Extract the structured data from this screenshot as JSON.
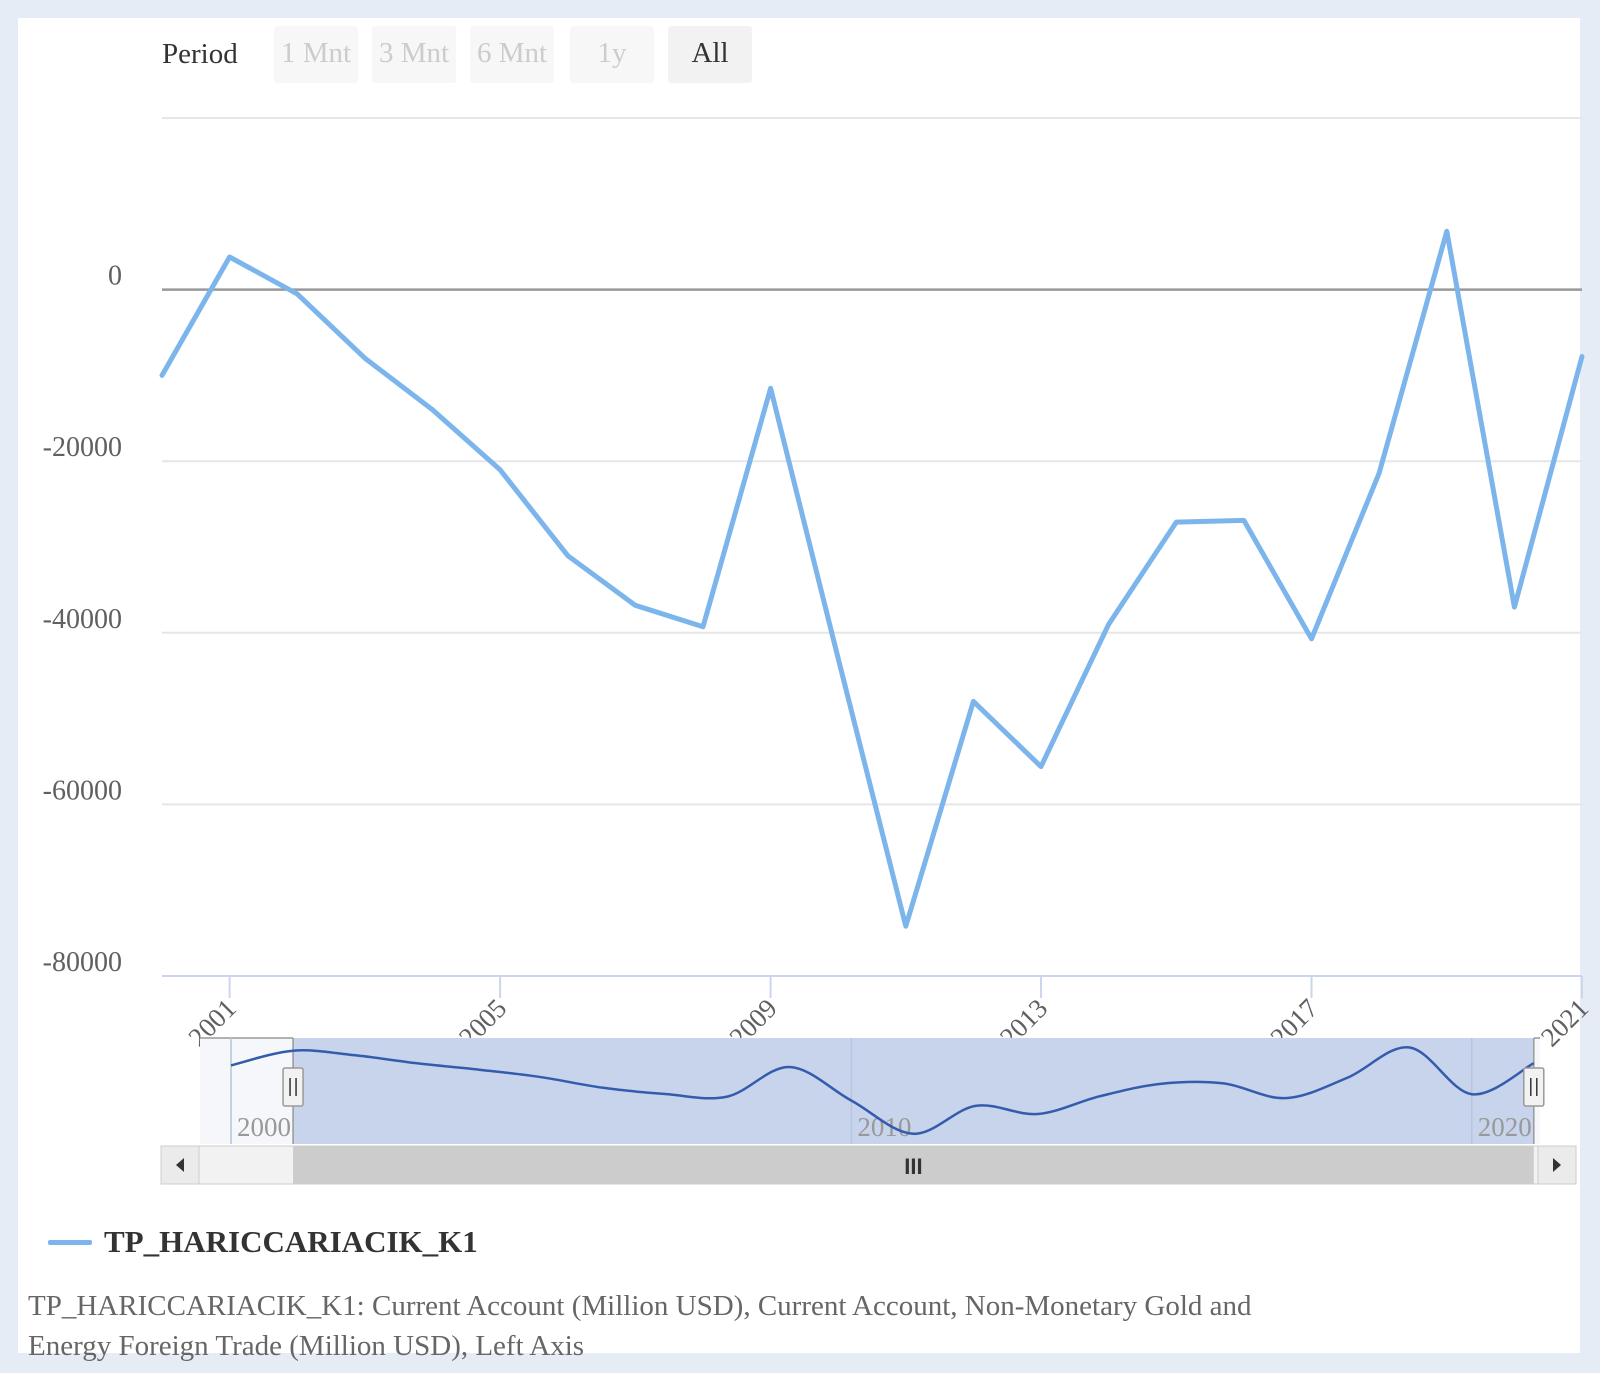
{
  "toolbar": {
    "period_label": "Period",
    "buttons": [
      {
        "label": "1 Mnt",
        "active": false
      },
      {
        "label": "3 Mnt",
        "active": false
      },
      {
        "label": "6 Mnt",
        "active": false
      },
      {
        "label": "1y",
        "active": false
      },
      {
        "label": "All",
        "active": true
      }
    ]
  },
  "chart_data": {
    "type": "line",
    "title": "",
    "xlabel": "",
    "ylabel": "",
    "x": [
      2000,
      2001,
      2002,
      2003,
      2004,
      2005,
      2006,
      2007,
      2008,
      2009,
      2010,
      2011,
      2012,
      2013,
      2014,
      2015,
      2016,
      2017,
      2018,
      2019,
      2020,
      2021
    ],
    "series": [
      {
        "name": "TP_HARICCARIACIK_K1",
        "color": "#7cb5ec",
        "values": [
          -10000,
          3800,
          -500,
          -8000,
          -14000,
          -21000,
          -31000,
          -36800,
          -39300,
          -11500,
          -43000,
          -74200,
          -48000,
          -55600,
          -39000,
          -27100,
          -26900,
          -40700,
          -21400,
          6800,
          -37000,
          -7800
        ]
      }
    ],
    "yticks": [
      0,
      -20000,
      -40000,
      -60000,
      -80000
    ],
    "xticks": [
      2001,
      2005,
      2009,
      2013,
      2017,
      2021
    ],
    "ylim": [
      -80000,
      20000
    ],
    "xlim": [
      2000,
      2021
    ],
    "grid": true,
    "legend_position": "bottom-left"
  },
  "navigator": {
    "labels": [
      "2000",
      "2010",
      "2020"
    ],
    "grip_label": "III",
    "selection_start_year": 2001,
    "selection_end_year": 2021,
    "color": "#335cad",
    "mask_color": "#c8d3ec"
  },
  "legend": {
    "label": "TP_HARICCARIACIK_K1"
  },
  "note": "TP_HARICCARIACIK_K1: Current Account (Million USD), Current Account, Non-Monetary Gold and Energy Foreign Trade (Million USD), Left Axis"
}
